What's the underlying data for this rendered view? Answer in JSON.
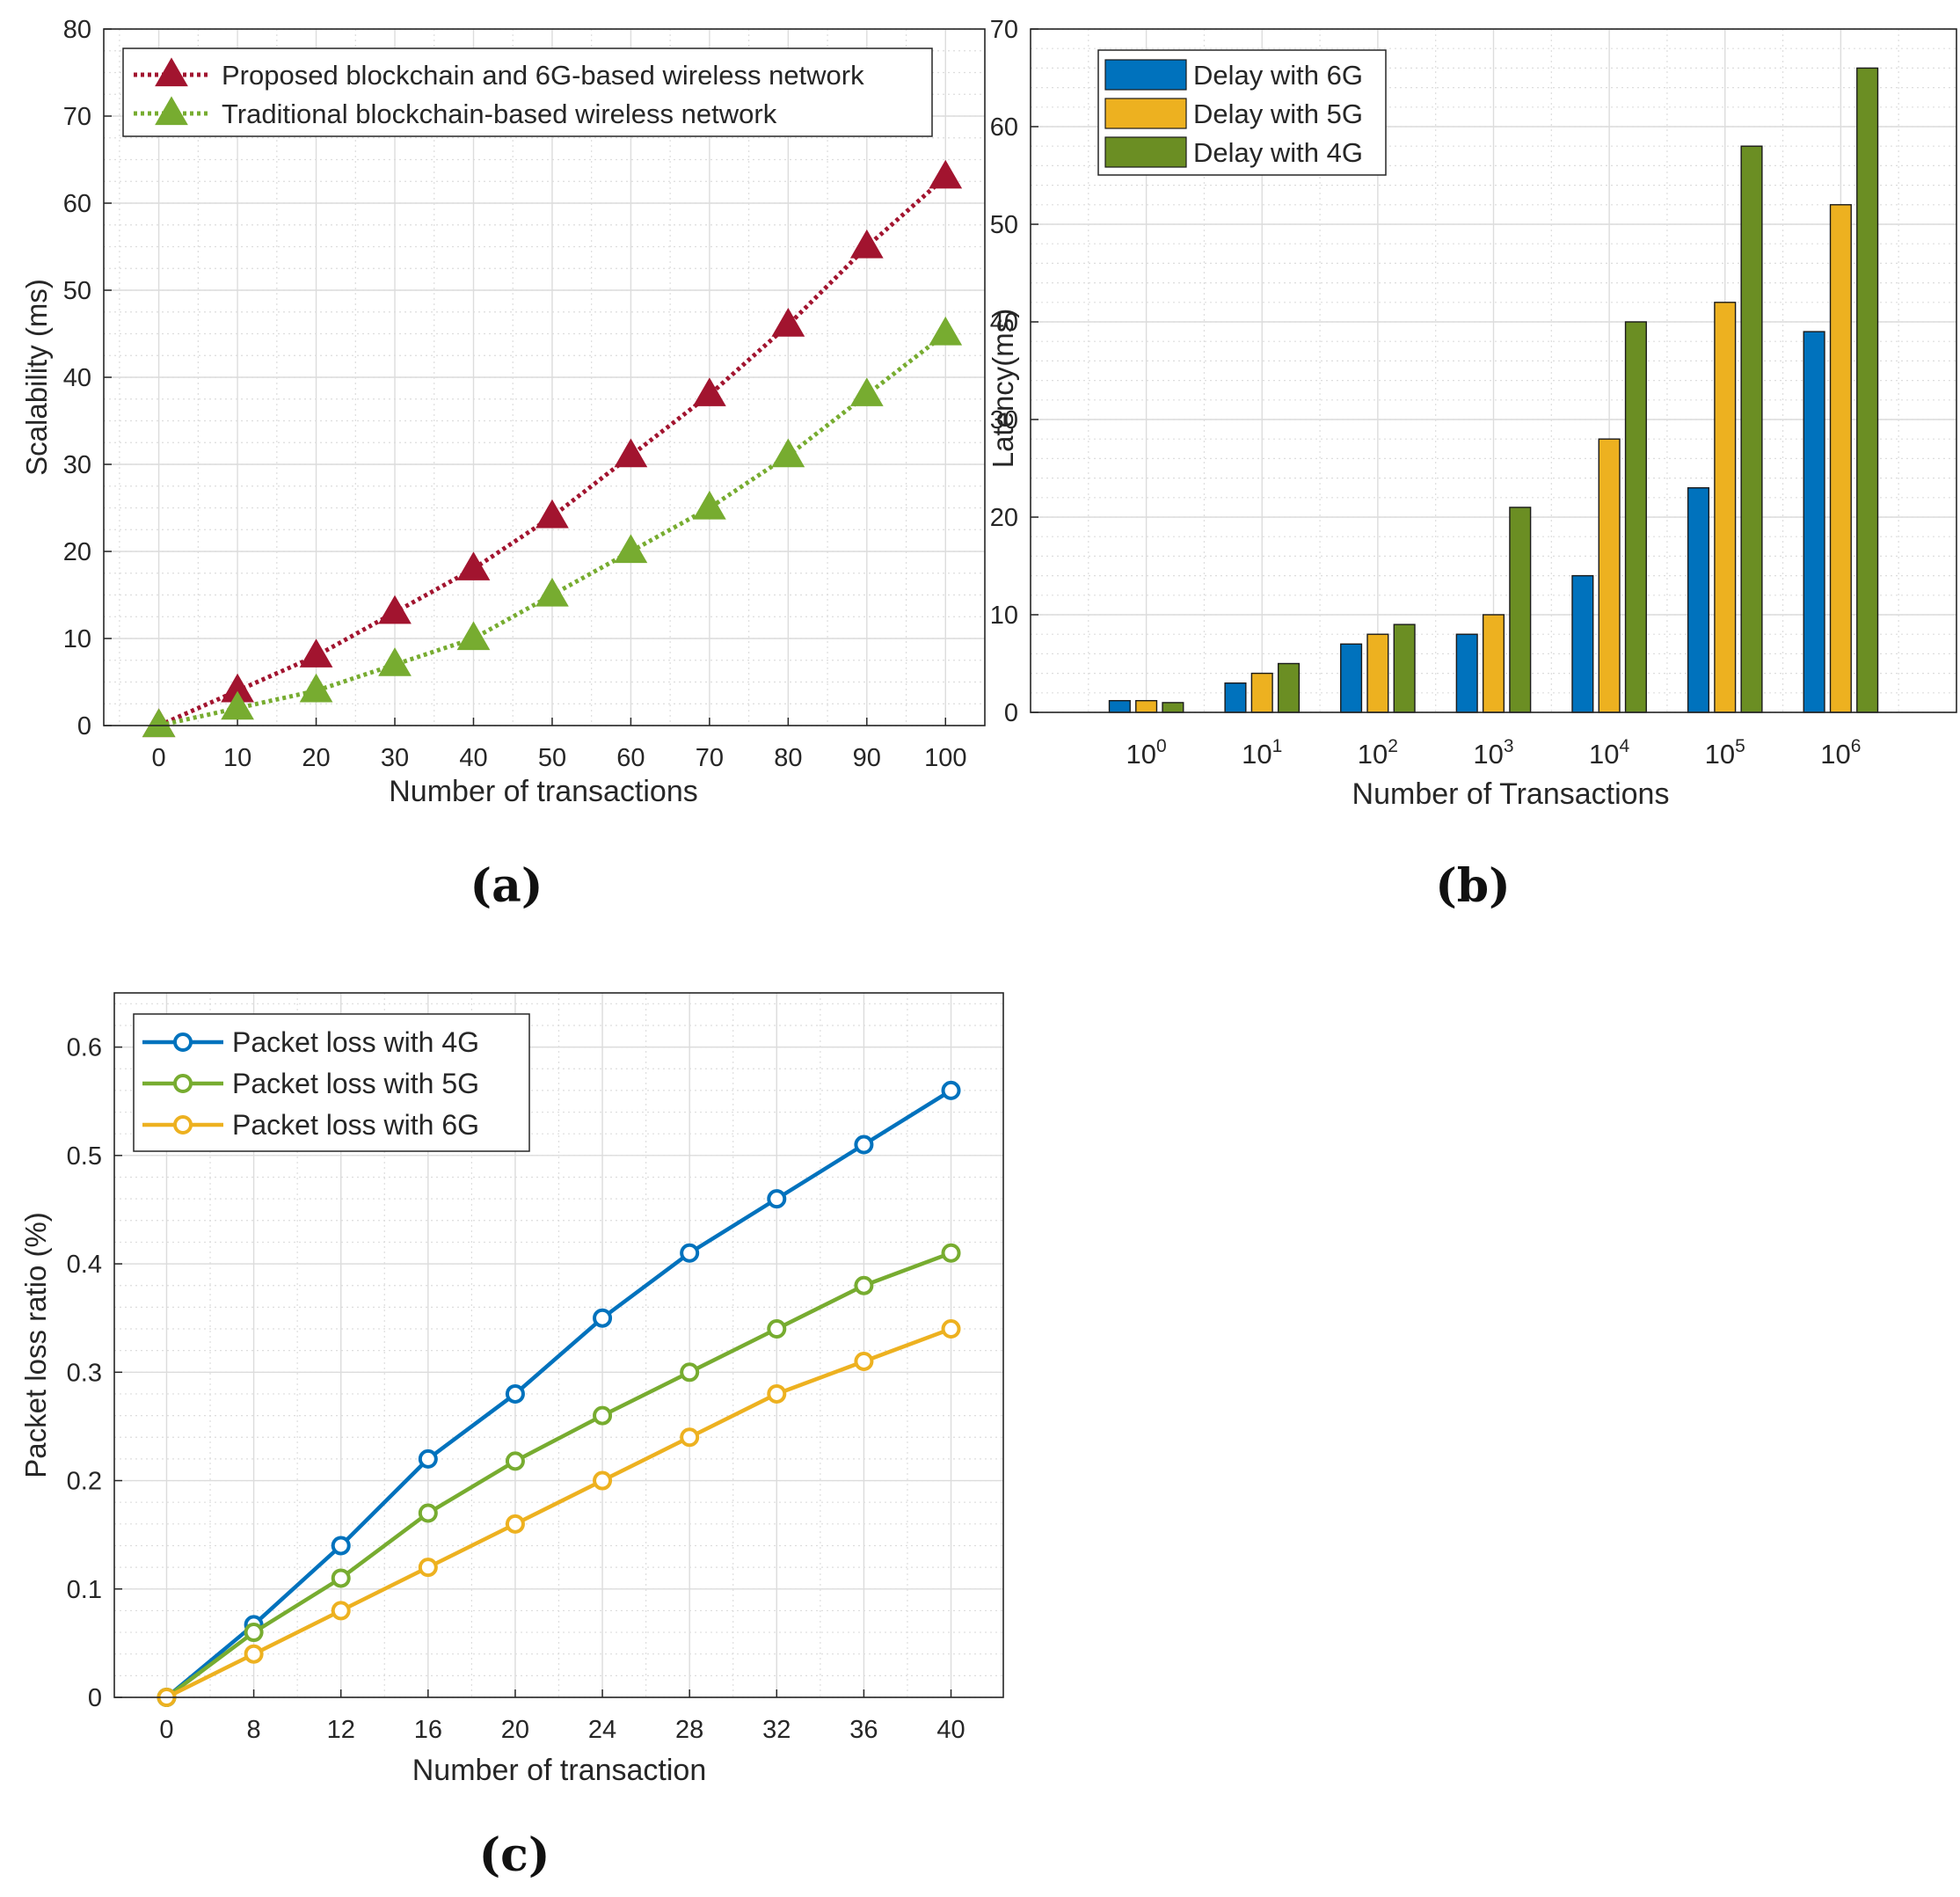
{
  "chart_data": [
    {
      "id": "a",
      "type": "line",
      "panel_label": "(a)",
      "xlabel": "Number of transactions",
      "ylabel": "Scalability (ms)",
      "xlim": [
        -7,
        105
      ],
      "ylim": [
        0,
        80
      ],
      "x_ticks": [
        0,
        10,
        20,
        30,
        40,
        50,
        60,
        70,
        80,
        90,
        100
      ],
      "y_ticks": [
        0,
        10,
        20,
        30,
        40,
        50,
        60,
        70,
        80
      ],
      "grid": true,
      "legend_position": "top-left",
      "x": [
        0,
        10,
        20,
        30,
        40,
        50,
        60,
        70,
        80,
        90,
        100
      ],
      "series": [
        {
          "name": "Proposed blockchain and 6G-based wireless network",
          "color": "#A2142F",
          "marker": "triangle",
          "line_style": "dotted",
          "values": [
            0,
            4,
            8,
            13,
            18,
            24,
            31,
            38,
            46,
            55,
            63
          ]
        },
        {
          "name": "Traditional blockchain-based wireless network",
          "color": "#77AC30",
          "marker": "triangle",
          "line_style": "dotted",
          "values": [
            0,
            2,
            4,
            7,
            10,
            15,
            20,
            25,
            31,
            38,
            45
          ]
        }
      ]
    },
    {
      "id": "b",
      "type": "bar",
      "panel_label": "(b)",
      "xlabel": "Number of Transactions",
      "ylabel": "Latency(ms)",
      "ylim": [
        0,
        70
      ],
      "y_ticks": [
        0,
        10,
        20,
        30,
        40,
        50,
        60,
        70
      ],
      "grid": true,
      "legend_position": "top-left",
      "categories": [
        {
          "base": "10",
          "exp": "0"
        },
        {
          "base": "10",
          "exp": "1"
        },
        {
          "base": "10",
          "exp": "2"
        },
        {
          "base": "10",
          "exp": "3"
        },
        {
          "base": "10",
          "exp": "4"
        },
        {
          "base": "10",
          "exp": "5"
        },
        {
          "base": "10",
          "exp": "6"
        }
      ],
      "series": [
        {
          "name": "Delay with 6G",
          "color": "#0072BD",
          "values": [
            1.2,
            3,
            7,
            8,
            14,
            23,
            39
          ]
        },
        {
          "name": "Delay with 5G",
          "color": "#EDB120",
          "values": [
            1.2,
            4,
            8,
            10,
            28,
            42,
            52
          ]
        },
        {
          "name": "Delay with 4G",
          "color": "#6B8E23",
          "values": [
            1,
            5,
            9,
            21,
            40,
            58,
            66
          ]
        }
      ]
    },
    {
      "id": "c",
      "type": "line",
      "panel_label": "(c)",
      "xlabel": "Number of transaction",
      "ylabel": "Packet loss ratio (%)",
      "ylim": [
        0,
        0.65
      ],
      "x_ticks": [
        0,
        8,
        12,
        16,
        20,
        24,
        28,
        32,
        36,
        40
      ],
      "y_ticks": [
        0,
        0.1,
        0.2,
        0.3,
        0.4,
        0.5,
        0.6
      ],
      "y_tick_labels": [
        "0",
        "0.1",
        "0.2",
        "0.3",
        "0.4",
        "0.5",
        "0.6"
      ],
      "x_scale": "categorical",
      "grid": true,
      "legend_position": "top-left",
      "series": [
        {
          "name": "Packet loss with 4G",
          "color": "#0072BD",
          "marker": "circle",
          "values": [
            0,
            0.067,
            0.14,
            0.22,
            0.28,
            0.35,
            0.41,
            0.46,
            0.51,
            0.56
          ]
        },
        {
          "name": "Packet loss with 5G",
          "color": "#77AC30",
          "marker": "circle",
          "values": [
            0,
            0.06,
            0.11,
            0.17,
            0.218,
            0.26,
            0.3,
            0.34,
            0.38,
            0.41
          ]
        },
        {
          "name": "Packet loss with 6G",
          "color": "#EDB120",
          "marker": "circle",
          "values": [
            0,
            0.04,
            0.08,
            0.12,
            0.16,
            0.2,
            0.24,
            0.28,
            0.31,
            0.34
          ]
        }
      ]
    }
  ]
}
